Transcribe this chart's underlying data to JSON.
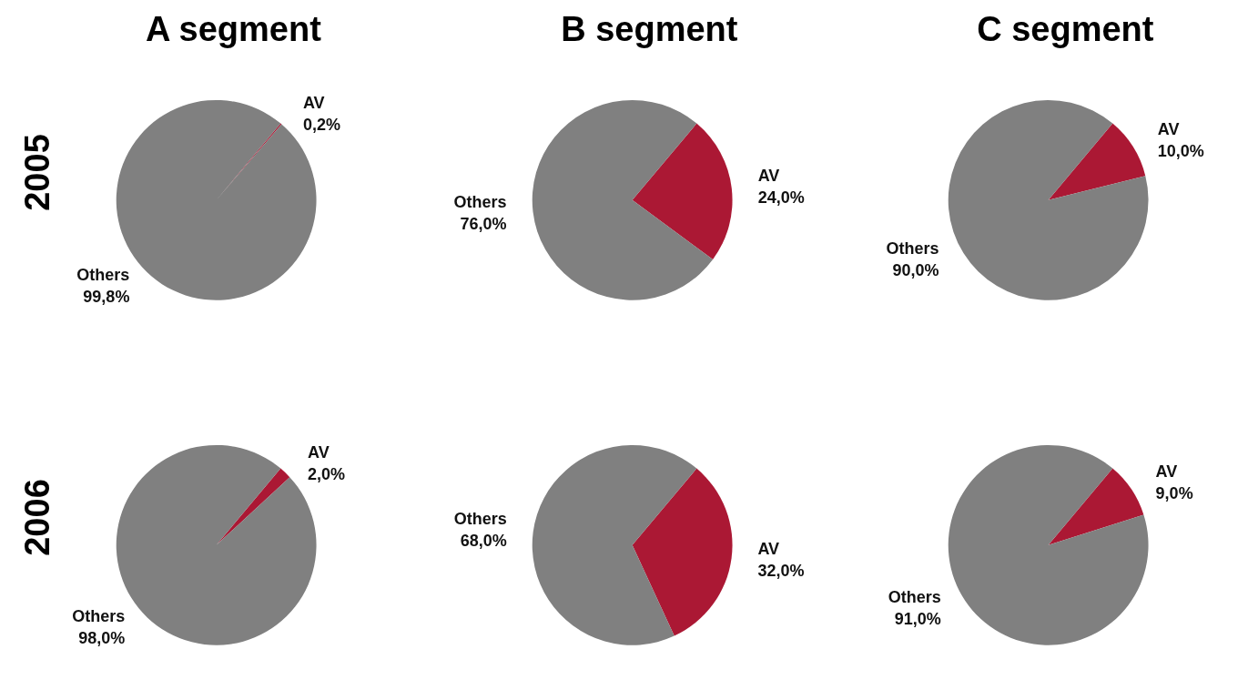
{
  "chart_data": [
    {
      "type": "pie",
      "title": "A segment",
      "ylabel": "2005",
      "categories": [
        "AV",
        "Others"
      ],
      "values": [
        0.2,
        99.8
      ],
      "colors": [
        "#ab1834",
        "#808080"
      ],
      "value_labels": [
        "0,2%",
        "99,8%"
      ]
    },
    {
      "type": "pie",
      "title": "B segment",
      "categories": [
        "AV",
        "Others"
      ],
      "values": [
        24,
        76
      ],
      "colors": [
        "#ab1834",
        "#808080"
      ],
      "value_labels": [
        "24,0%",
        "76,0%"
      ]
    },
    {
      "type": "pie",
      "title": "C segment",
      "categories": [
        "AV",
        "Others"
      ],
      "values": [
        10,
        90
      ],
      "colors": [
        "#ab1834",
        "#808080"
      ],
      "value_labels": [
        "10,0%",
        "90,0%"
      ]
    },
    {
      "type": "pie",
      "ylabel": "2006",
      "categories": [
        "AV",
        "Others"
      ],
      "values": [
        2,
        98
      ],
      "colors": [
        "#ab1834",
        "#808080"
      ],
      "value_labels": [
        "2,0%",
        "98,0%"
      ]
    },
    {
      "type": "pie",
      "categories": [
        "AV",
        "Others"
      ],
      "values": [
        32,
        68
      ],
      "colors": [
        "#ab1834",
        "#808080"
      ],
      "value_labels": [
        "32,0%",
        "68,0%"
      ]
    },
    {
      "type": "pie",
      "categories": [
        "AV",
        "Others"
      ],
      "values": [
        9,
        91
      ],
      "colors": [
        "#ab1834",
        "#808080"
      ],
      "value_labels": [
        "9,0%",
        "91,0%"
      ]
    }
  ]
}
